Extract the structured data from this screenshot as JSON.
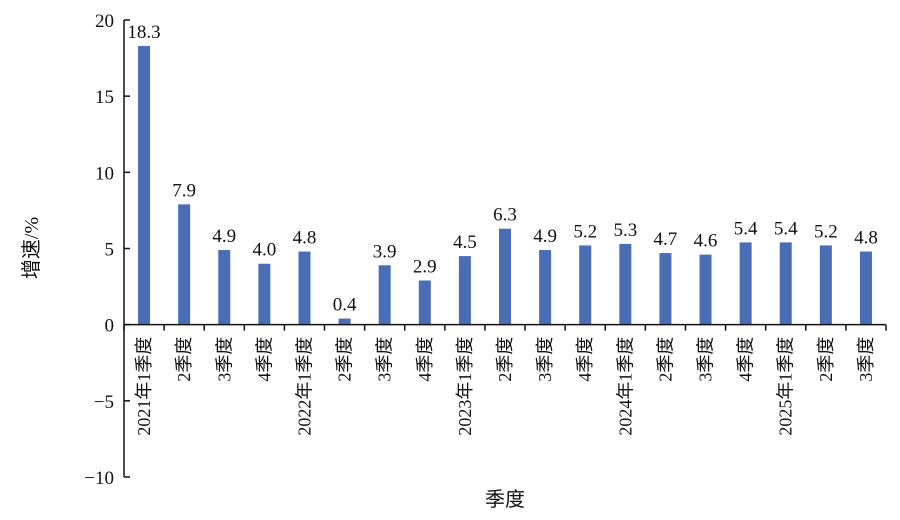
{
  "chart_data": {
    "type": "bar",
    "title": "",
    "xlabel": "季度",
    "ylabel": "增速/%",
    "ylim": [
      -10,
      20
    ],
    "yticks": [
      "20",
      "15",
      "10",
      "5",
      "0",
      "−5",
      "−10"
    ],
    "ytick_values": [
      20,
      15,
      10,
      5,
      0,
      -5,
      -10
    ],
    "grid": false,
    "legend": "none",
    "bar_color": "#4A6EB5",
    "categories": [
      "2021年1季度",
      "2季度",
      "3季度",
      "4季度",
      "2022年1季度",
      "2季度",
      "3季度",
      "4季度",
      "2023年1季度",
      "2季度",
      "3季度",
      "4季度",
      "2024年1季度",
      "2季度",
      "3季度",
      "4季度",
      "2025年1季度",
      "2季度",
      "3季度"
    ],
    "values": [
      18.3,
      7.9,
      4.9,
      4.0,
      4.8,
      0.4,
      3.9,
      2.9,
      4.5,
      6.3,
      4.9,
      5.2,
      5.3,
      4.7,
      4.6,
      5.4,
      5.4,
      5.2,
      4.8
    ],
    "value_labels": [
      "18.3",
      "7.9",
      "4.9",
      "4.0",
      "4.8",
      "0.4",
      "3.9",
      "2.9",
      "4.5",
      "6.3",
      "4.9",
      "5.2",
      "5.3",
      "4.7",
      "4.6",
      "5.4",
      "5.4",
      "5.2",
      "4.8"
    ]
  }
}
